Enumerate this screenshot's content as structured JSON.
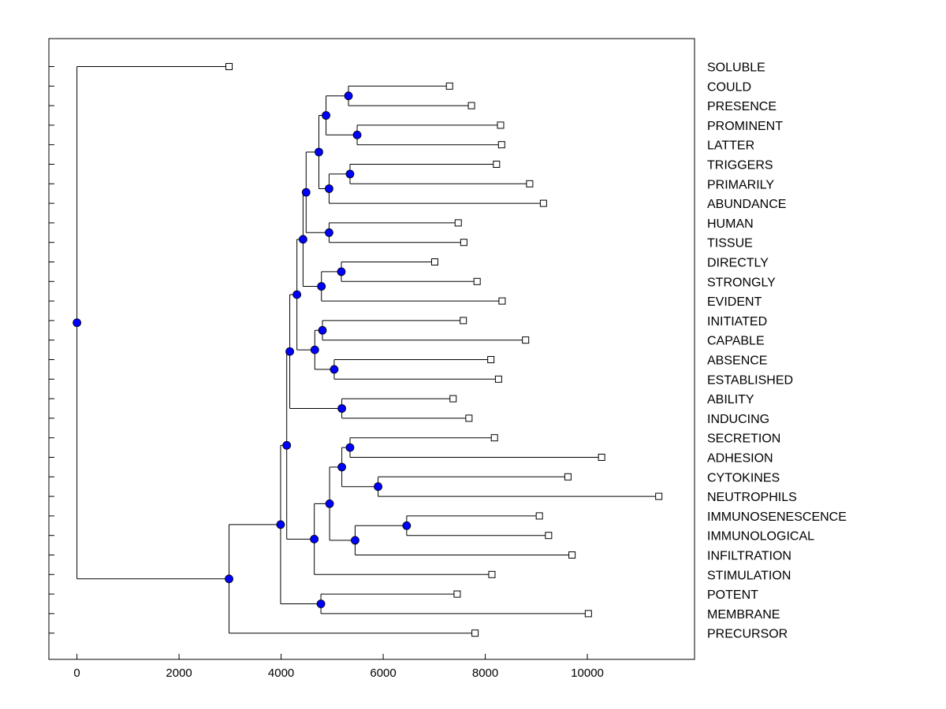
{
  "chart_data": {
    "type": "dendrogram",
    "x_range": [
      -550,
      12100
    ],
    "x_ticks": [
      0,
      2000,
      4000,
      6000,
      8000,
      10000
    ],
    "x_tick_labels": [
      "0",
      "2000",
      "4000",
      "6000",
      "8000",
      "10000"
    ],
    "leaves": [
      {
        "label": "SOLUBLE",
        "x": 2980
      },
      {
        "label": "COULD",
        "x": 7300
      },
      {
        "label": "PRESENCE",
        "x": 7730
      },
      {
        "label": "PROMINENT",
        "x": 8300
      },
      {
        "label": "LATTER",
        "x": 8320
      },
      {
        "label": "TRIGGERS",
        "x": 8220
      },
      {
        "label": "PRIMARILY",
        "x": 8870
      },
      {
        "label": "ABUNDANCE",
        "x": 9140
      },
      {
        "label": "HUMAN",
        "x": 7470
      },
      {
        "label": "TISSUE",
        "x": 7580
      },
      {
        "label": "DIRECTLY",
        "x": 7010
      },
      {
        "label": "STRONGLY",
        "x": 7840
      },
      {
        "label": "EVIDENT",
        "x": 8330
      },
      {
        "label": "INITIATED",
        "x": 7570
      },
      {
        "label": "CAPABLE",
        "x": 8790
      },
      {
        "label": "ABSENCE",
        "x": 8110
      },
      {
        "label": "ESTABLISHED",
        "x": 8260
      },
      {
        "label": "ABILITY",
        "x": 7370
      },
      {
        "label": "INDUCING",
        "x": 7680
      },
      {
        "label": "SECRETION",
        "x": 8180
      },
      {
        "label": "ADHESION",
        "x": 10280
      },
      {
        "label": "CYTOKINES",
        "x": 9620
      },
      {
        "label": "NEUTROPHILS",
        "x": 11400
      },
      {
        "label": "IMMUNOSENESCENCE",
        "x": 9060
      },
      {
        "label": "IMMUNOLOGICAL",
        "x": 9240
      },
      {
        "label": "INFILTRATION",
        "x": 9700
      },
      {
        "label": "STIMULATION",
        "x": 8130
      },
      {
        "label": "POTENT",
        "x": 7450
      },
      {
        "label": "MEMBRANE",
        "x": 10020
      },
      {
        "label": "PRECURSOR",
        "x": 7800
      }
    ],
    "merges": [
      {
        "id": "n1",
        "x": 5320,
        "children": [
          "L1",
          "L2"
        ]
      },
      {
        "id": "n2",
        "x": 5490,
        "children": [
          "L3",
          "L4"
        ]
      },
      {
        "id": "n3",
        "x": 4880,
        "children": [
          "n1",
          "n2"
        ]
      },
      {
        "id": "n4",
        "x": 5350,
        "children": [
          "L5",
          "L6"
        ]
      },
      {
        "id": "n5",
        "x": 4940,
        "children": [
          "n4",
          "L7"
        ]
      },
      {
        "id": "n6",
        "x": 4740,
        "children": [
          "n3",
          "n5"
        ]
      },
      {
        "id": "n7",
        "x": 4940,
        "children": [
          "L8",
          "L9"
        ]
      },
      {
        "id": "n8",
        "x": 4490,
        "children": [
          "n6",
          "n7"
        ]
      },
      {
        "id": "n9",
        "x": 5180,
        "children": [
          "L10",
          "L11"
        ]
      },
      {
        "id": "n10",
        "x": 4790,
        "children": [
          "n9",
          "L12"
        ]
      },
      {
        "id": "n11",
        "x": 4430,
        "children": [
          "n8",
          "n10"
        ]
      },
      {
        "id": "n12",
        "x": 4810,
        "children": [
          "L13",
          "L14"
        ]
      },
      {
        "id": "n13",
        "x": 5040,
        "children": [
          "L15",
          "L16"
        ]
      },
      {
        "id": "n14",
        "x": 4660,
        "children": [
          "n12",
          "n13"
        ]
      },
      {
        "id": "n15",
        "x": 4310,
        "children": [
          "n11",
          "n14"
        ]
      },
      {
        "id": "n16",
        "x": 5190,
        "children": [
          "L17",
          "L18"
        ]
      },
      {
        "id": "n17",
        "x": 4170,
        "children": [
          "n15",
          "n16"
        ]
      },
      {
        "id": "n18",
        "x": 5350,
        "children": [
          "L19",
          "L20"
        ]
      },
      {
        "id": "n19",
        "x": 5900,
        "children": [
          "L21",
          "L22"
        ]
      },
      {
        "id": "n20",
        "x": 5190,
        "children": [
          "n18",
          "n19"
        ]
      },
      {
        "id": "n21",
        "x": 6460,
        "children": [
          "L23",
          "L24"
        ]
      },
      {
        "id": "n22",
        "x": 5450,
        "children": [
          "n21",
          "L25"
        ]
      },
      {
        "id": "n23",
        "x": 4950,
        "children": [
          "n20",
          "n22"
        ]
      },
      {
        "id": "n24",
        "x": 4650,
        "children": [
          "n23",
          "L26"
        ]
      },
      {
        "id": "n25",
        "x": 4110,
        "children": [
          "n17",
          "n24"
        ]
      },
      {
        "id": "n26",
        "x": 4780,
        "children": [
          "L27",
          "L28"
        ]
      },
      {
        "id": "n27",
        "x": 3990,
        "children": [
          "n25",
          "n26"
        ]
      },
      {
        "id": "n28",
        "x": 2980,
        "children": [
          "n27",
          "L29"
        ]
      },
      {
        "id": "n29",
        "x": 0,
        "children": [
          "L0",
          "n28"
        ]
      }
    ],
    "leaf_marker_color": "#ffffff",
    "node_marker_color": "#0000ff"
  }
}
